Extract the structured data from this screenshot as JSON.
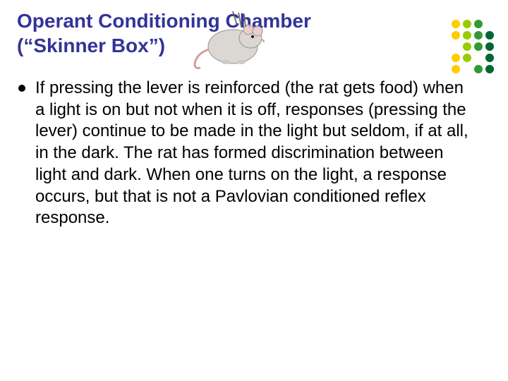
{
  "title_line1": "Operant Conditioning Chamber",
  "title_line2": "(“Skinner Box”)",
  "body": "If pressing the lever is reinforced (the rat gets food) when a light is on but not when it is off, responses (pressing the lever) continue to be made in the light but seldom, if at all, in the dark. The rat has formed discrimination between light and dark. When one turns on the light, a response occurs, but that is not a Pavlovian conditioned reflex response.",
  "colors": {
    "title": "#333399",
    "body": "#000000",
    "bullet": "#000000",
    "background": "#ffffff"
  },
  "dots_grid": {
    "rows": 5,
    "cols": 4,
    "colors": [
      [
        "#ffcc00",
        "#99cc00",
        "#339933",
        "#ffffff"
      ],
      [
        "#ffcc00",
        "#99cc00",
        "#339933",
        "#006633"
      ],
      [
        "#ffffff",
        "#99cc00",
        "#339933",
        "#006633"
      ],
      [
        "#ffcc00",
        "#99cc00",
        "#ffffff",
        "#006633"
      ],
      [
        "#ffcc00",
        "#ffffff",
        "#339933",
        "#006633"
      ]
    ]
  },
  "decorative_image": "cartoon-rat",
  "font": {
    "title_size_pt": 21,
    "body_size_pt": 18,
    "family": "Arial"
  }
}
